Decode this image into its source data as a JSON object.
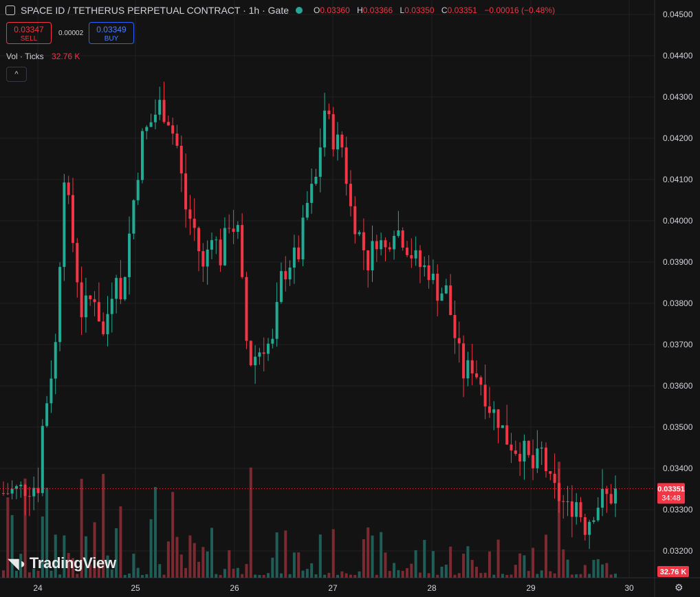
{
  "header": {
    "title": "SPACE ID / TETHERUS PERPETUAL CONTRACT · 1h · Gate",
    "ohlc": [
      {
        "k": "O",
        "v": "0.03360"
      },
      {
        "k": "H",
        "v": "0.03366"
      },
      {
        "k": "L",
        "v": "0.03350"
      },
      {
        "k": "C",
        "v": "0.03351"
      },
      {
        "k": "",
        "v": "−0.00016 (−0.48%)"
      }
    ]
  },
  "trade": {
    "sell_price": "0.03347",
    "sell_label": "SELL",
    "spread": "0.00002",
    "buy_price": "0.03349",
    "buy_label": "BUY"
  },
  "volume": {
    "label": "Vol · Ticks",
    "value": "32.76 K"
  },
  "collapse_symbol": "^",
  "watermark": "TradingView",
  "colors": {
    "up": "#22ab94",
    "down": "#f23645",
    "background": "#131313",
    "grid": "#222222"
  },
  "chart_data": {
    "type": "candlestick",
    "y_ticks": [
      "0.03200",
      "0.03300",
      "0.03400",
      "0.03500",
      "0.03600",
      "0.03700",
      "0.03800",
      "0.03900",
      "0.04000",
      "0.04100",
      "0.04200",
      "0.04300",
      "0.04400",
      "0.04500"
    ],
    "x_ticks": [
      "24",
      "25",
      "26",
      "27",
      "28",
      "29",
      "30"
    ],
    "ylim": [
      0.0315,
      0.0452
    ],
    "last_price": "0.03351",
    "countdown": "34:48",
    "volume_last": "32.76 K",
    "waypoints": [
      [
        0,
        0.0334
      ],
      [
        8,
        0.0336
      ],
      [
        9,
        0.035
      ],
      [
        12,
        0.037
      ],
      [
        14,
        0.0412
      ],
      [
        16,
        0.0395
      ],
      [
        18,
        0.0378
      ],
      [
        21,
        0.0382
      ],
      [
        23,
        0.0372
      ],
      [
        26,
        0.0389
      ],
      [
        27,
        0.038
      ],
      [
        30,
        0.0405
      ],
      [
        32,
        0.042
      ],
      [
        36,
        0.0428
      ],
      [
        38,
        0.0425
      ],
      [
        40,
        0.0418
      ],
      [
        42,
        0.0403
      ],
      [
        44,
        0.0398
      ],
      [
        46,
        0.0388
      ],
      [
        48,
        0.0398
      ],
      [
        50,
        0.0391
      ],
      [
        52,
        0.04
      ],
      [
        54,
        0.0397
      ],
      [
        56,
        0.0371
      ],
      [
        57,
        0.0366
      ],
      [
        60,
        0.037
      ],
      [
        62,
        0.037
      ],
      [
        64,
        0.0386
      ],
      [
        66,
        0.039
      ],
      [
        68,
        0.0392
      ],
      [
        70,
        0.0404
      ],
      [
        72,
        0.041
      ],
      [
        74,
        0.0427
      ],
      [
        76,
        0.042
      ],
      [
        78,
        0.0418
      ],
      [
        80,
        0.0403
      ],
      [
        84,
        0.039
      ],
      [
        86,
        0.0396
      ],
      [
        88,
        0.0393
      ],
      [
        90,
        0.0399
      ],
      [
        92,
        0.0396
      ],
      [
        94,
        0.0392
      ],
      [
        96,
        0.0389
      ],
      [
        98,
        0.0388
      ],
      [
        100,
        0.0383
      ],
      [
        102,
        0.0383
      ],
      [
        104,
        0.0372
      ],
      [
        106,
        0.0363
      ],
      [
        108,
        0.0365
      ],
      [
        110,
        0.0361
      ],
      [
        112,
        0.0355
      ],
      [
        114,
        0.0352
      ],
      [
        116,
        0.0347
      ],
      [
        118,
        0.0345
      ],
      [
        120,
        0.0344
      ],
      [
        122,
        0.034
      ],
      [
        124,
        0.0344
      ],
      [
        126,
        0.0336
      ],
      [
        128,
        0.0333
      ],
      [
        130,
        0.033
      ],
      [
        132,
        0.0332
      ],
      [
        134,
        0.0326
      ],
      [
        136,
        0.033
      ],
      [
        138,
        0.0333
      ],
      [
        140,
        0.0333
      ],
      [
        141,
        0.0335
      ]
    ],
    "n_candles": 142
  }
}
